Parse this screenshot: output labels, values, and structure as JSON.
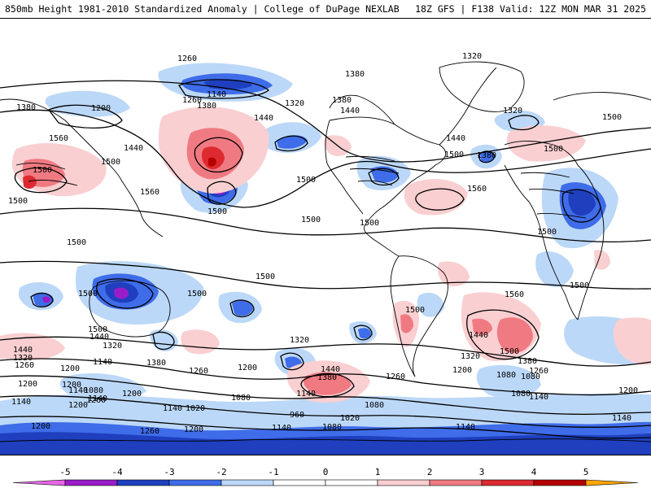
{
  "header": {
    "left": "850mb Height 1981-2010 Standardized Anomaly | College of DuPage NEXLAB",
    "right": "18Z GFS | F138 Valid: 12Z MON MAR 31 2025"
  },
  "contour_labels": [
    "1260",
    "1320",
    "1380",
    "1200",
    "1380",
    "1140",
    "1260",
    "1380",
    "1320",
    "1440",
    "1380",
    "1320",
    "1440",
    "1500",
    "1560",
    "1440",
    "1500",
    "1500",
    "1500",
    "1380",
    "1500",
    "1440",
    "1500",
    "1560",
    "1560",
    "1500",
    "1500",
    "1500",
    "1500",
    "1500",
    "1500",
    "1500",
    "1560",
    "1500",
    "1500",
    "1500",
    "1500",
    "1440",
    "1320",
    "1260",
    "1380",
    "1200",
    "1500",
    "1440",
    "1320",
    "1200",
    "1140",
    "1260",
    "1200",
    "1080",
    "1140",
    "1440",
    "1380",
    "1320",
    "1260",
    "1200",
    "1080",
    "1140",
    "1140",
    "1200",
    "1080",
    "1020",
    "960",
    "1140",
    "1080",
    "1020",
    "1200",
    "1260",
    "1140",
    "1080",
    "1200",
    "1140",
    "1140",
    "1200",
    "1260",
    "1140",
    "1080",
    "1080",
    "1200",
    "1140",
    "1500",
    "1380",
    "1440",
    "1320",
    "1260",
    "1200"
  ],
  "colors": {
    "neg5": "#e666e6",
    "neg4": "#9a1cc9",
    "neg3": "#1f3fbf",
    "neg2": "#3f6ce8",
    "neg1": "#bcd8f8",
    "zero": "#ffffff",
    "pos1": "#f9cfd1",
    "pos2": "#f07a82",
    "pos3": "#dd2a30",
    "pos4": "#b50000",
    "pos5": "#ffa500",
    "land_borders": "#000000",
    "contours": "#000000"
  },
  "colorbar": {
    "ticks": [
      "-5",
      "-4",
      "-3",
      "-2",
      "-1",
      "0",
      "1",
      "2",
      "3",
      "4",
      "5"
    ]
  }
}
